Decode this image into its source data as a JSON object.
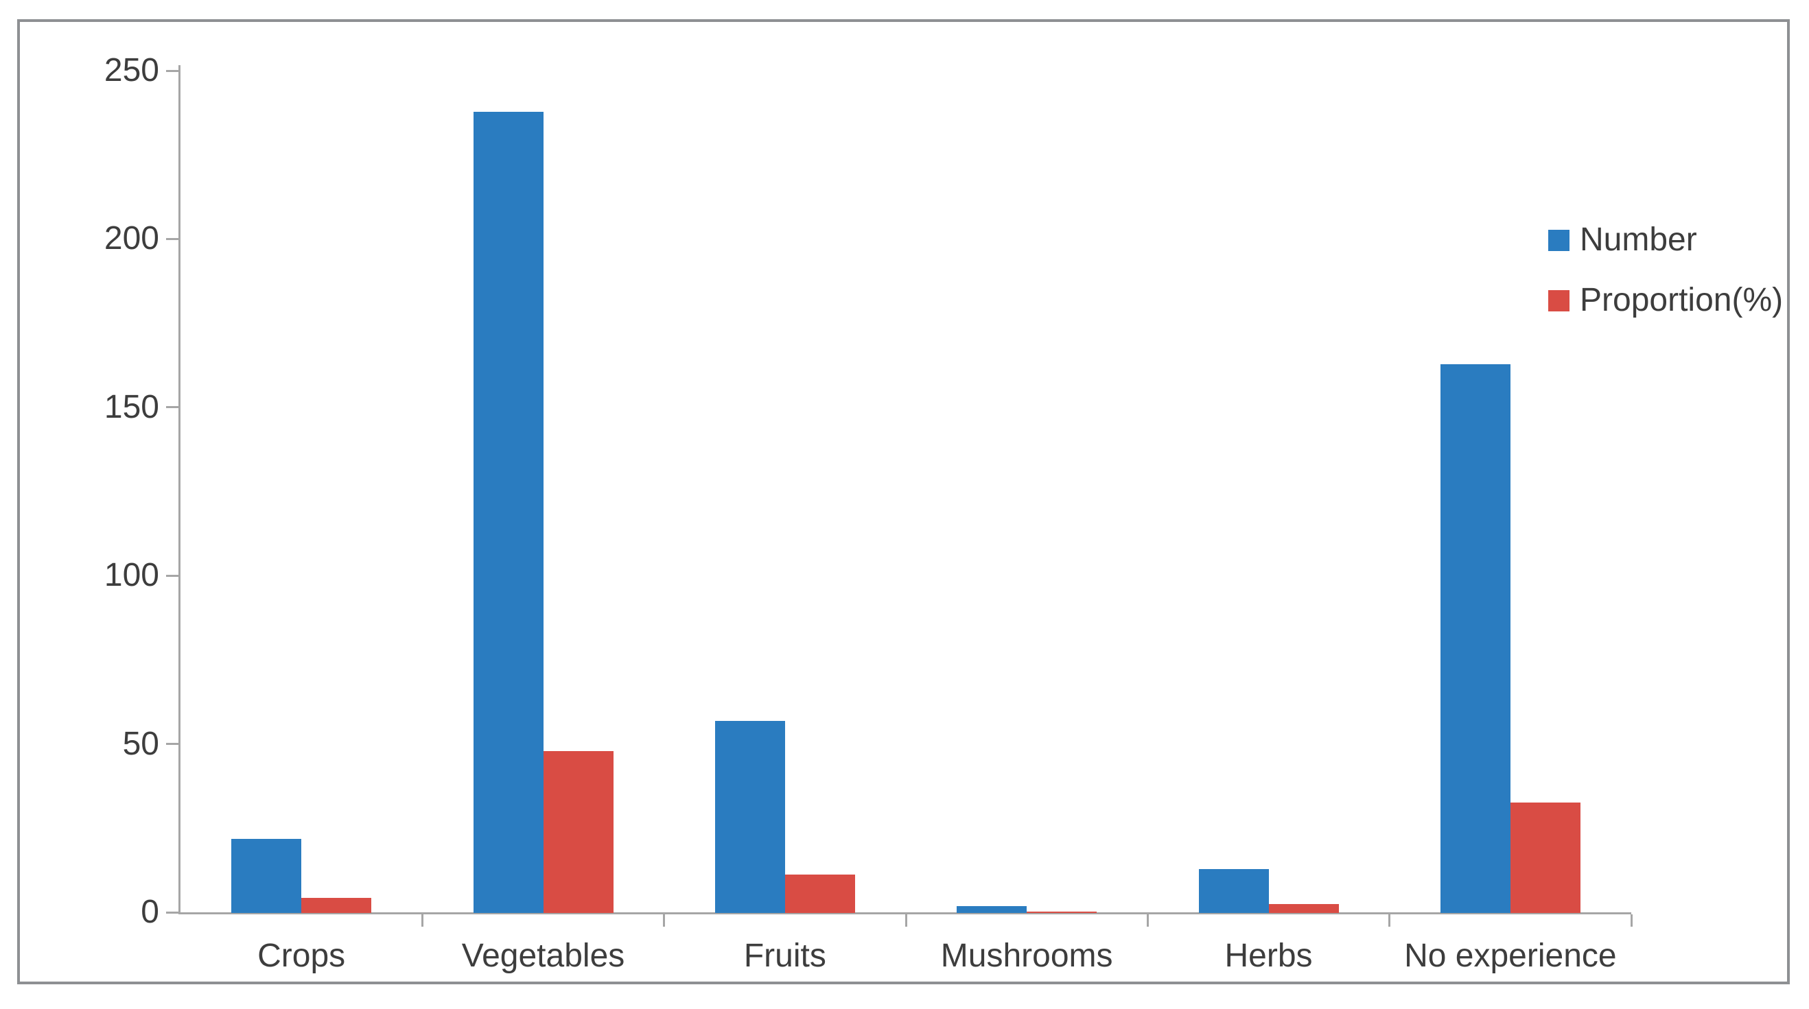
{
  "colors": {
    "bar_number": "#2a7cc0",
    "bar_proportion": "#d94c44",
    "axis": "#a6a6a6",
    "frame_border": "#8e9093",
    "text": "#3d3d3d",
    "background": "#ffffff"
  },
  "legend": {
    "items": [
      {
        "label": "Number"
      },
      {
        "label": "Proportion(%)"
      }
    ]
  },
  "chart_data": {
    "type": "bar",
    "title": "",
    "xlabel": "",
    "ylabel": "",
    "categories": [
      "Crops",
      "Vegetables",
      "Fruits",
      "Mushrooms",
      "Herbs",
      "No experience"
    ],
    "series": [
      {
        "name": "Number",
        "color": "#2a7cc0",
        "values": [
          22,
          238,
          57,
          2,
          13,
          163
        ]
      },
      {
        "name": "Proportion(%)",
        "color": "#d94c44",
        "values": [
          4.4,
          48.1,
          11.5,
          0.4,
          2.6,
          32.9
        ]
      }
    ],
    "ylim": [
      0,
      250
    ],
    "yticks": [
      0,
      50,
      100,
      150,
      200,
      250
    ],
    "grid": false,
    "legend_position": "top-right"
  }
}
